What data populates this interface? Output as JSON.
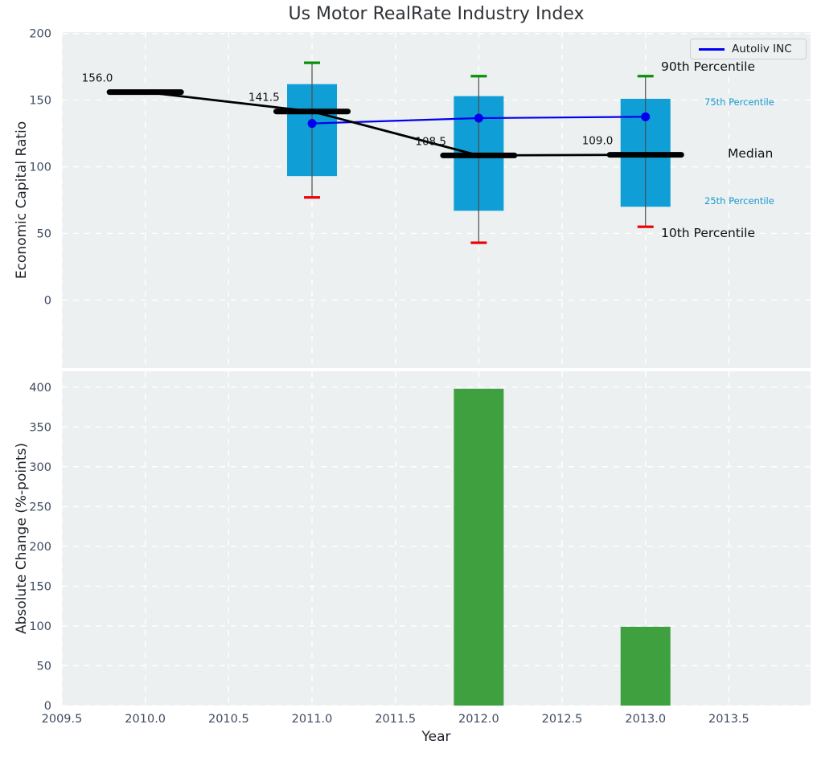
{
  "figure": {
    "title": "Us Motor RealRate Industry Index",
    "background": "#ffffff",
    "plot_background": "#ecf0f1",
    "grid_color": "#ffffff",
    "tick_color": "#3e4b60"
  },
  "legend": {
    "label": "Autoliv INC",
    "line_color": "#0000ee"
  },
  "percentile_labels": {
    "p90": "90th Percentile",
    "p75": "75th Percentile",
    "median": "Median",
    "p25": "25th Percentile",
    "p10": "10th Percentile",
    "accent_color": "#1599cf"
  },
  "chart_data": [
    {
      "type": "boxplot",
      "title": "Us Motor RealRate Industry Index",
      "ylabel": "Economic Capital Ratio",
      "xlim": [
        2009.5,
        2013.99
      ],
      "ylim": [
        -51,
        201
      ],
      "yticks": [
        0,
        50,
        100,
        150,
        200
      ],
      "grid": true,
      "legend_position": "upper right",
      "box_color": "#0f9ed5",
      "whisker_color": "#4d4d4d",
      "cap_top_color": "#0a8f0a",
      "cap_bottom_color": "#ec0000",
      "median_color": "#000000",
      "medians": [
        {
          "year": 2010,
          "value": 156.0,
          "label": "156.0"
        },
        {
          "year": 2011,
          "value": 141.5,
          "label": "141.5"
        },
        {
          "year": 2012,
          "value": 108.5,
          "label": "108.5"
        },
        {
          "year": 2013,
          "value": 109.0,
          "label": "109.0"
        }
      ],
      "boxes": [
        {
          "year": 2011,
          "p10": 77,
          "p25": 93,
          "median": 141.5,
          "p75": 162,
          "p90": 178
        },
        {
          "year": 2012,
          "p10": 43,
          "p25": 67,
          "median": 108.5,
          "p75": 153,
          "p90": 168
        },
        {
          "year": 2013,
          "p10": 55,
          "p25": 70,
          "median": 109.0,
          "p75": 151,
          "p90": 168
        }
      ],
      "series": [
        {
          "name": "Autoliv INC",
          "color": "#0000ee",
          "x": [
            2011,
            2012,
            2013
          ],
          "y": [
            132.5,
            136.5,
            137.5
          ]
        }
      ]
    },
    {
      "type": "bar",
      "ylabel": "Absolute Change (%-points)",
      "xlabel": "Year",
      "xlim": [
        2009.5,
        2013.99
      ],
      "ylim": [
        0,
        420
      ],
      "yticks": [
        0,
        50,
        100,
        150,
        200,
        250,
        300,
        350,
        400
      ],
      "xticks": [
        2009.5,
        2010.0,
        2010.5,
        2011.0,
        2011.5,
        2012.0,
        2012.5,
        2013.0,
        2013.5
      ],
      "xtick_labels": [
        "2009.5",
        "2010.0",
        "2010.5",
        "2011.0",
        "2011.5",
        "2012.0",
        "2012.5",
        "2013.0",
        "2013.5"
      ],
      "grid": true,
      "bar_color": "#3fa03f",
      "x": [
        2012,
        2013
      ],
      "values": [
        398,
        99
      ]
    }
  ]
}
